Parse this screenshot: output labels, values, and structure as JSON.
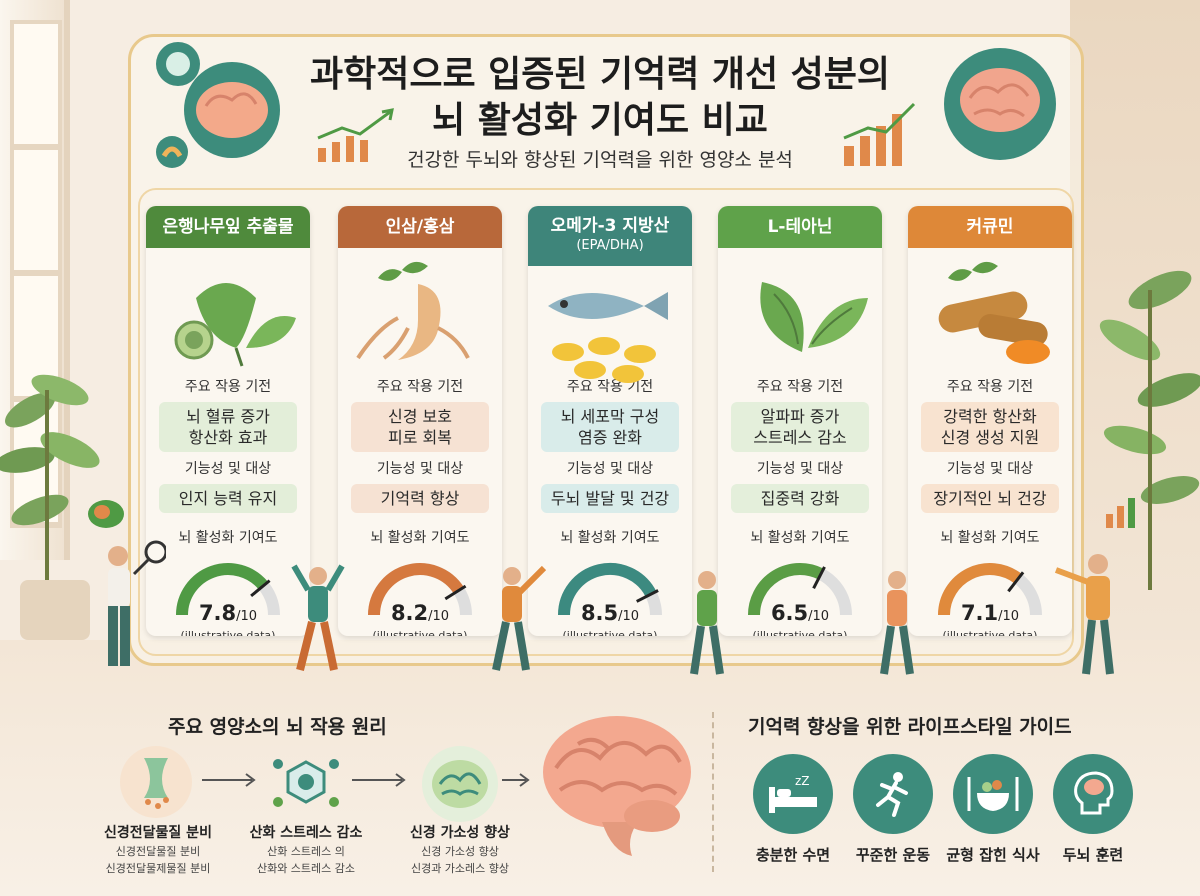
{
  "header": {
    "title_line1": "과학적으로 입증된 기억력 개선 성분의",
    "title_line2": "뇌 활성화 기여도 비교",
    "subtitle": "건강한 두뇌와 향상된 기억력을 위한 영양소 분석"
  },
  "labels": {
    "mechanism": "주요 작용 기전",
    "function": "기능성 및 대상",
    "contribution": "뇌 활성화 기여도",
    "score_den": "/10",
    "note": "(illustrative data)"
  },
  "cards": [
    {
      "name": "은행나무잎 추출물",
      "sub": "",
      "color": "#4f8a3c",
      "mech1": "뇌 혈류 증가",
      "mech2": "항산화 효과",
      "mech_bg": "#e3eed9",
      "func": "인지 능력 유지",
      "func_bg": "#e3eed9",
      "score": "7.8",
      "value": 7.8,
      "gauge": "#4f9a44",
      "icon": "ginkgo-leaf-icon"
    },
    {
      "name": "인삼/홍삼",
      "sub": "",
      "color": "#b8683a",
      "mech1": "신경 보호",
      "mech2": "피로 회복",
      "mech_bg": "#f6e2d3",
      "func": "기억력 향상",
      "func_bg": "#f6e2d3",
      "score": "8.2",
      "value": 8.2,
      "gauge": "#d5793f",
      "icon": "ginseng-root-icon"
    },
    {
      "name": "오메가-3 지방산",
      "sub": "(EPA/DHA)",
      "color": "#3e857a",
      "mech1": "뇌 세포막 구성",
      "mech2": "염증 완화",
      "mech_bg": "#d9ecea",
      "func": "두뇌 발달 및 건강",
      "func_bg": "#d9ecea",
      "score": "8.5",
      "value": 8.5,
      "gauge": "#3c8a80",
      "icon": "fish-oil-icon"
    },
    {
      "name": "L-테아닌",
      "sub": "",
      "color": "#5fa24a",
      "mech1": "알파파 증가",
      "mech2": "스트레스 감소",
      "mech_bg": "#e4efdb",
      "func": "집중력 강화",
      "func_bg": "#e4efdb",
      "score": "6.5",
      "value": 6.5,
      "gauge": "#5a9d45",
      "icon": "tea-leaf-icon"
    },
    {
      "name": "커큐민",
      "sub": "",
      "color": "#de8838",
      "mech1": "강력한 항산화",
      "mech2": "신경 생성 지원",
      "mech_bg": "#f8e3d0",
      "func": "장기적인 뇌 건강",
      "func_bg": "#f8e3d0",
      "score": "7.1",
      "value": 7.1,
      "gauge": "#e08a3c",
      "icon": "turmeric-root-icon"
    }
  ],
  "principles": {
    "title": "주요 영양소의 뇌 작용 원리",
    "items": [
      {
        "name": "신경전달물질 분비",
        "desc1": "신경전달물질 분비",
        "desc2": "신경전달물제물질 분비"
      },
      {
        "name": "산화 스트레스 감소",
        "desc1": "산화 스트레스 의",
        "desc2": "산화와 스트레스 감소"
      },
      {
        "name": "신경 가소성 향상",
        "desc1": "신경 가소성 향상",
        "desc2": "신경과 가소레스 향상"
      }
    ]
  },
  "lifestyle": {
    "title": "기억력 향상을 위한 라이프스타일 가이드",
    "items": [
      {
        "label": "충분한 수면",
        "icon": "sleep-bed-icon"
      },
      {
        "label": "꾸준한 운동",
        "icon": "running-person-icon"
      },
      {
        "label": "균형 잡힌 식사",
        "icon": "meal-plate-icon"
      },
      {
        "label": "두뇌 훈련",
        "icon": "brain-head-icon"
      }
    ]
  },
  "colors": {
    "frame": "#e8c98c",
    "teal": "#3d8c7c",
    "background": "#f6ede2"
  }
}
